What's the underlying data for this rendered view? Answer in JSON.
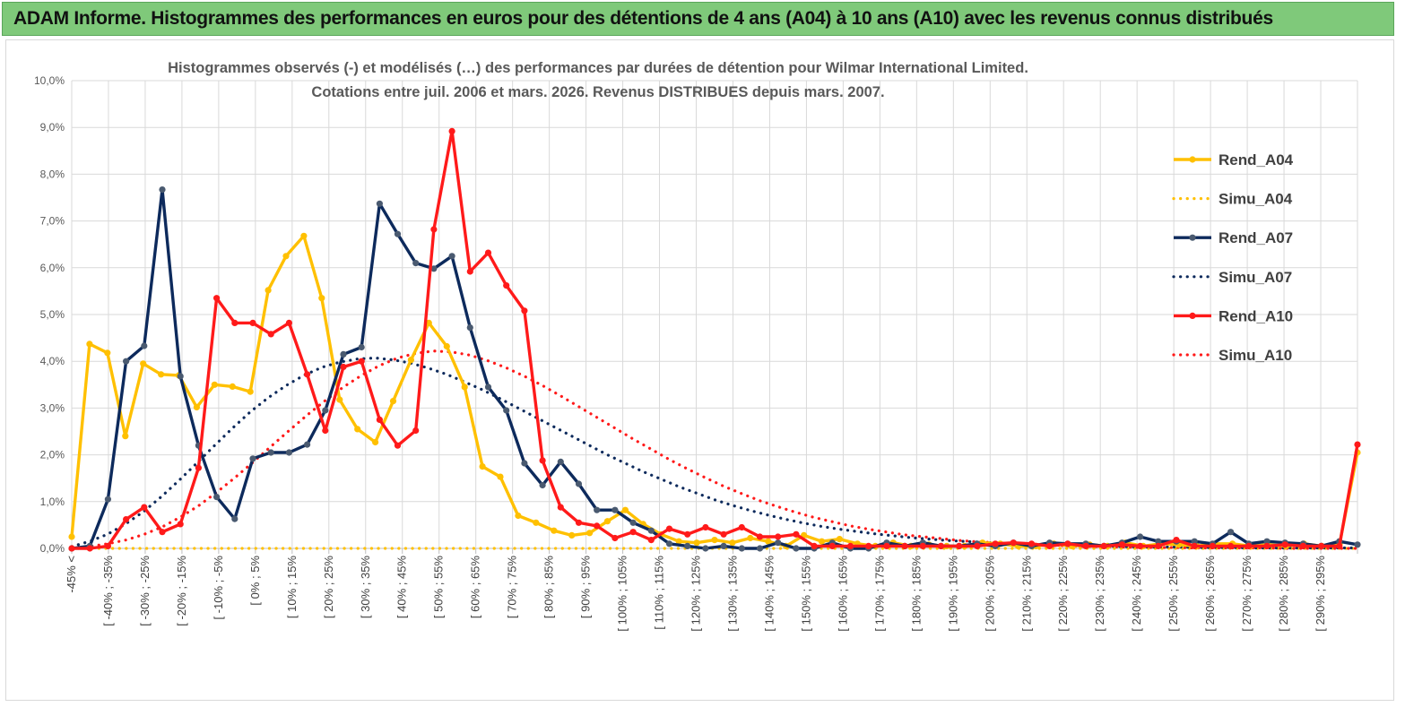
{
  "banner": {
    "title": "ADAM Informe. Histogrammes des performances en euros pour des détentions de 4 ans (A04) à 10 ans (A10) avec les revenus connus distribués"
  },
  "colors": {
    "banner_bg": "#7fc97a",
    "A04": "#ffc000",
    "A07": "#0d2a5c",
    "A07_marker": "#4a5a70",
    "A10": "#ff1a1a",
    "grid": "#d9d9d9"
  },
  "chart_data": {
    "type": "line",
    "title_line1": "Histogrammes observés (-) et modélisés (…) des performances par durées de détention pour Wilmar International Limited.",
    "title_line2": "Cotations entre juil. 2006 et mars. 2026. Revenus DISTRIBUES depuis mars. 2007.",
    "ylim": [
      0,
      10
    ],
    "yticks": [
      "0,0%",
      "1,0%",
      "2,0%",
      "3,0%",
      "4,0%",
      "5,0%",
      "6,0%",
      "7,0%",
      "8,0%",
      "9,0%",
      "10,0%"
    ],
    "xtick_labels": [
      "-45% <",
      "[ -40% ; -35%",
      "[ -30% ; -25%",
      "[ -20% ; -15%",
      "[ -10% ; -5%",
      "[ 0% ; 5%",
      "[ 10% ; 15%",
      "[ 20% ; 25%",
      "[ 30% ; 35%",
      "[ 40% ; 45%",
      "[ 50% ; 55%",
      "[ 60% ; 65%",
      "[ 70% ; 75%",
      "[ 80% ; 85%",
      "[ 90% ; 95%",
      "[ 100% ; 105%",
      "[ 110% ; 115%",
      "[ 120% ; 125%",
      "[ 130% ; 135%",
      "[ 140% ; 145%",
      "[ 150% ; 155%",
      "[ 160% ; 165%",
      "[ 170% ; 175%",
      "[ 180% ; 185%",
      "[ 190% ; 195%",
      "[ 200% ; 205%",
      "[ 210% ; 215%",
      "[ 220% ; 225%",
      "[ 230% ; 235%",
      "[ 240% ; 245%",
      "[ 250% ; 255%",
      "[ 260% ; 265%",
      "[ 270% ; 275%",
      "[ 280% ; 285%",
      "[ 290% ; 295%"
    ],
    "legend_position": "right",
    "grid": true,
    "series": [
      {
        "name": "Rend_A04",
        "style": "solid",
        "color": "#ffc000",
        "values": [
          0.25,
          4.37,
          4.18,
          2.4,
          3.95,
          3.72,
          3.7,
          3.02,
          3.5,
          3.46,
          3.35,
          5.52,
          6.25,
          6.68,
          5.35,
          3.18,
          2.55,
          2.27,
          3.15,
          4.03,
          4.82,
          4.32,
          3.45,
          1.75,
          1.53,
          0.7,
          0.55,
          0.38,
          0.28,
          0.33,
          0.58,
          0.82,
          0.52,
          0.3,
          0.15,
          0.12,
          0.18,
          0.12,
          0.22,
          0.15,
          0.05,
          0.28,
          0.15,
          0.2,
          0.1,
          0.05,
          0.12,
          0.05,
          0.08,
          0.05,
          0.05,
          0.12,
          0.1,
          0.05,
          0.05,
          0.1,
          0.05,
          0.08,
          0.05,
          0.12,
          0.05,
          0.1,
          0.08,
          0.05,
          0.1,
          0.1,
          0.05,
          0.08,
          0.05,
          0.1,
          0.05,
          0.1,
          2.05
        ]
      },
      {
        "name": "Simu_A04",
        "style": "dotted",
        "color": "#ffc000",
        "values": [
          0,
          0,
          0,
          0,
          0,
          0,
          0,
          0,
          0,
          0,
          0,
          0,
          0,
          0,
          0,
          0,
          0,
          0,
          0,
          0,
          0,
          0,
          0,
          0,
          0,
          0,
          0,
          0,
          0,
          0,
          0,
          0,
          0,
          0,
          0,
          0,
          0,
          0,
          0,
          0,
          0,
          0,
          0,
          0,
          0,
          0,
          0,
          0,
          0,
          0,
          0,
          0,
          0,
          0,
          0,
          0,
          0,
          0,
          0,
          0,
          0,
          0,
          0,
          0,
          0,
          0,
          0,
          0,
          0,
          0,
          0,
          0,
          0
        ]
      },
      {
        "name": "Rend_A07",
        "style": "solid",
        "color": "#0d2a5c",
        "values": [
          0,
          0.05,
          1.05,
          4.0,
          4.33,
          7.67,
          3.68,
          2.2,
          1.1,
          0.63,
          1.92,
          2.05,
          2.05,
          2.22,
          2.95,
          4.15,
          4.3,
          7.37,
          6.72,
          6.1,
          5.98,
          6.25,
          4.72,
          3.45,
          2.95,
          1.82,
          1.35,
          1.85,
          1.38,
          0.82,
          0.82,
          0.55,
          0.38,
          0.1,
          0.05,
          0,
          0.05,
          0,
          0,
          0.12,
          0,
          0,
          0.12,
          0,
          0,
          0.12,
          0.05,
          0.12,
          0.05,
          0.05,
          0.1,
          0.05,
          0.12,
          0.05,
          0.12,
          0.1,
          0.1,
          0.05,
          0.12,
          0.25,
          0.15,
          0.15,
          0.15,
          0.1,
          0.35,
          0.1,
          0.15,
          0.12,
          0.1,
          0.05,
          0.15,
          0.08
        ]
      },
      {
        "name": "Simu_A07",
        "style": "dotted",
        "color": "#0d2a5c",
        "values": [
          0.04,
          0.15,
          0.3,
          0.52,
          0.78,
          1.1,
          1.45,
          1.82,
          2.2,
          2.57,
          2.92,
          3.22,
          3.48,
          3.7,
          3.87,
          3.98,
          4.05,
          4.07,
          4.03,
          3.96,
          3.85,
          3.72,
          3.56,
          3.39,
          3.2,
          3.0,
          2.8,
          2.6,
          2.4,
          2.2,
          2.0,
          1.82,
          1.64,
          1.48,
          1.32,
          1.18,
          1.04,
          0.92,
          0.81,
          0.71,
          0.62,
          0.54,
          0.47,
          0.41,
          0.36,
          0.31,
          0.27,
          0.23,
          0.2,
          0.17,
          0.15,
          0.13,
          0.11,
          0.1,
          0.08,
          0.07,
          0.06,
          0.05,
          0.05,
          0.04,
          0.03,
          0.03,
          0.03,
          0.02,
          0.02,
          0.02,
          0.01,
          0.01,
          0.01,
          0.01,
          0.01,
          0.01,
          0.01
        ]
      },
      {
        "name": "Rend_A10",
        "style": "solid",
        "color": "#ff1a1a",
        "values": [
          0,
          0,
          0.05,
          0.62,
          0.88,
          0.35,
          0.52,
          1.72,
          5.35,
          4.82,
          4.82,
          4.58,
          4.82,
          3.72,
          2.52,
          3.88,
          4.0,
          2.75,
          2.2,
          2.52,
          6.82,
          8.92,
          5.92,
          6.32,
          5.62,
          5.08,
          1.88,
          0.88,
          0.55,
          0.48,
          0.22,
          0.35,
          0.18,
          0.42,
          0.3,
          0.45,
          0.3,
          0.45,
          0.25,
          0.25,
          0.3,
          0.05,
          0.05,
          0.05,
          0.05,
          0.05,
          0.05,
          0.05,
          0.05,
          0.05,
          0.05,
          0.1,
          0.12,
          0.1,
          0.05,
          0.1,
          0.05,
          0.05,
          0.08,
          0.05,
          0.05,
          0.18,
          0.05,
          0.05,
          0.05,
          0.05,
          0.05,
          0.08,
          0.05,
          0.05,
          0.05,
          2.22
        ]
      },
      {
        "name": "Simu_A10",
        "style": "dotted",
        "color": "#ff1a1a",
        "values": [
          0.01,
          0.04,
          0.1,
          0.18,
          0.3,
          0.46,
          0.67,
          0.91,
          1.2,
          1.51,
          1.84,
          2.18,
          2.52,
          2.85,
          3.16,
          3.45,
          3.7,
          3.91,
          4.07,
          4.17,
          4.22,
          4.2,
          4.13,
          4.01,
          3.86,
          3.68,
          3.48,
          3.26,
          3.03,
          2.8,
          2.57,
          2.34,
          2.12,
          1.9,
          1.7,
          1.51,
          1.33,
          1.17,
          1.02,
          0.89,
          0.77,
          0.66,
          0.57,
          0.48,
          0.41,
          0.35,
          0.29,
          0.25,
          0.21,
          0.17,
          0.14,
          0.12,
          0.1,
          0.08,
          0.07,
          0.05,
          0.04,
          0.04,
          0.03,
          0.02,
          0.02,
          0.02,
          0.01,
          0.01,
          0.01,
          0.01,
          0.01,
          0.0,
          0.0,
          0.0,
          0.0,
          0.0
        ]
      }
    ]
  }
}
